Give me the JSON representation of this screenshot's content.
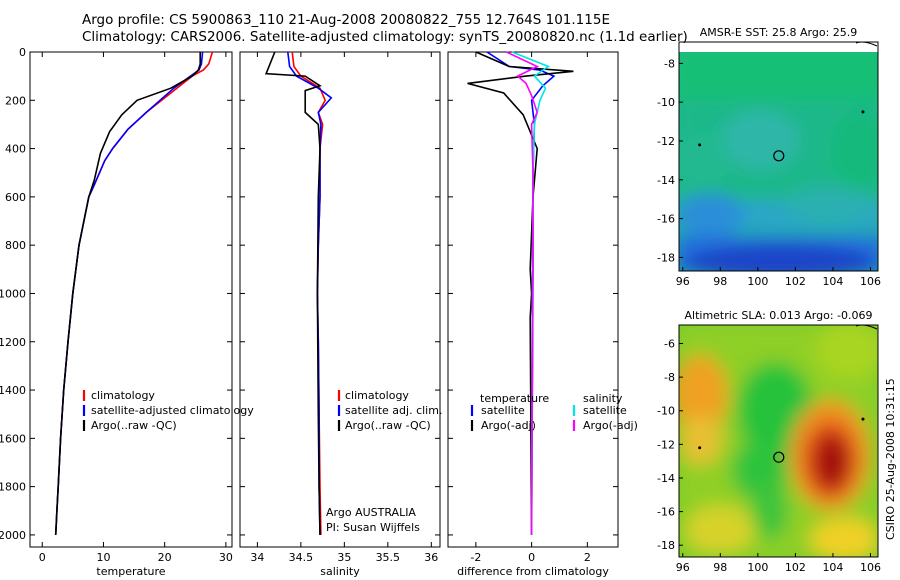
{
  "header": {
    "line1": "Argo profile: CS 5900863_110 21-Aug-2008 20080822_755 12.764S 101.115E",
    "line2": "Climatology: CARS2006. Satellite-adjusted climatology: synTS_20080820.nc (1.1d earlier)"
  },
  "side_label": "CSIRO 25-Aug-2008 10:31:15",
  "colors": {
    "climatology": "#ff0000",
    "satellite": "#0000ff",
    "argo": "#000000",
    "salinity_satellite": "#00e5e5",
    "salinity_argo": "#ff00ff"
  },
  "chart_data": [
    {
      "id": "temperature",
      "type": "line",
      "xlabel": "temperature",
      "ylabel": "",
      "xlim": [
        -2,
        31
      ],
      "ylim": [
        2050,
        0
      ],
      "xticks": [
        0,
        10,
        20,
        30
      ],
      "yticks": [
        0,
        200,
        400,
        600,
        800,
        1000,
        1200,
        1400,
        1600,
        1800,
        2000
      ],
      "legend": [
        "climatology",
        "satellite-adjusted climatology",
        "Argo(..raw -QC)"
      ],
      "series": [
        {
          "name": "climatology",
          "color": "#ff0000",
          "x": [
            27.8,
            27.2,
            26.3,
            24.5,
            22,
            17,
            14,
            11.5,
            10.2,
            8.5,
            7.6,
            6,
            5,
            4.2,
            3.5,
            3,
            2.6,
            2.4,
            2.2
          ],
          "y": [
            0,
            50,
            75,
            100,
            150,
            250,
            320,
            400,
            450,
            550,
            600,
            800,
            1000,
            1200,
            1400,
            1600,
            1800,
            1900,
            2000
          ]
        },
        {
          "name": "satellite-adjusted climatology",
          "color": "#0000ff",
          "x": [
            26.2,
            26,
            25.6,
            24.2,
            21.5,
            17,
            14,
            11.5,
            10.2,
            8.5,
            7.6,
            6,
            5,
            4.2,
            3.5,
            3,
            2.6,
            2.4,
            2.2
          ],
          "y": [
            0,
            50,
            75,
            100,
            150,
            250,
            320,
            400,
            450,
            550,
            600,
            800,
            1000,
            1200,
            1400,
            1600,
            1800,
            1900,
            2000
          ]
        },
        {
          "name": "Argo(..raw -QC)",
          "color": "#000000",
          "x": [
            25.8,
            25.8,
            25.5,
            24.5,
            21,
            15.5,
            13,
            11,
            9.5,
            8.5,
            7.6,
            6,
            5,
            4.2,
            3.5,
            3,
            2.6,
            2.4,
            2.2
          ],
          "y": [
            0,
            50,
            75,
            100,
            150,
            200,
            260,
            330,
            420,
            530,
            600,
            800,
            1000,
            1200,
            1400,
            1600,
            1800,
            1900,
            2000
          ]
        }
      ]
    },
    {
      "id": "salinity",
      "type": "line",
      "xlabel": "salinity",
      "xlim": [
        33.8,
        36.1
      ],
      "ylim": [
        2050,
        0
      ],
      "xticks": [
        34,
        34.5,
        35,
        35.5,
        36
      ],
      "legend": [
        "climatology",
        "satellite adj. clim.",
        "Argo(..raw -QC)"
      ],
      "annotations": [
        "Argo AUSTRALIA",
        "PI: Susan Wijffels"
      ],
      "series": [
        {
          "name": "climatology",
          "color": "#ff0000",
          "x": [
            34.4,
            34.42,
            34.5,
            34.72,
            34.78,
            34.7,
            34.75,
            34.72,
            34.72,
            34.7,
            34.69,
            34.7,
            34.71,
            34.72,
            34.73
          ],
          "y": [
            0,
            60,
            100,
            150,
            200,
            250,
            300,
            400,
            600,
            800,
            1000,
            1200,
            1500,
            1800,
            2000
          ]
        },
        {
          "name": "satellite adj. clim.",
          "color": "#0000ff",
          "x": [
            34.35,
            34.37,
            34.45,
            34.7,
            34.85,
            34.7,
            34.73,
            34.72,
            34.72,
            34.7,
            34.69,
            34.7,
            34.71,
            34.71,
            34.72
          ],
          "y": [
            0,
            60,
            100,
            150,
            190,
            250,
            300,
            400,
            600,
            800,
            1000,
            1200,
            1500,
            1800,
            2000
          ]
        },
        {
          "name": "Argo(..raw -QC)",
          "color": "#000000",
          "x": [
            34.2,
            34.1,
            34.55,
            34.72,
            34.55,
            34.55,
            34.7,
            34.72,
            34.7,
            34.69,
            34.7,
            34.71,
            34.72
          ],
          "y": [
            0,
            90,
            100,
            140,
            160,
            250,
            300,
            400,
            600,
            1000,
            1500,
            1800,
            2000
          ]
        }
      ]
    },
    {
      "id": "difference",
      "type": "line",
      "xlabel": "difference from climatology",
      "xlim": [
        -3,
        3.1
      ],
      "ylim": [
        2050,
        0
      ],
      "xticks": [
        -2,
        0,
        2
      ],
      "legend_temperature_header": "temperature",
      "legend_salinity_header": "salinity",
      "legend": [
        "satellite",
        "Argo(-adj)",
        "satellite",
        "Argo(-adj)"
      ],
      "series": [
        {
          "name": "temperature satellite",
          "color": "#0000ff",
          "x": [
            -1.6,
            -0.8,
            0.3,
            0.8,
            0.4,
            0,
            0.1,
            0.05,
            0.05,
            0
          ],
          "y": [
            0,
            60,
            75,
            100,
            140,
            200,
            300,
            500,
            900,
            2000
          ]
        },
        {
          "name": "temperature Argo(-adj)",
          "color": "#000000",
          "x": [
            -2,
            -0.8,
            1.5,
            -0.2,
            -2.3,
            -1,
            -0.3,
            0.2,
            0.05,
            -0.05,
            0,
            -0.05,
            0
          ],
          "y": [
            0,
            60,
            80,
            100,
            130,
            170,
            260,
            400,
            600,
            900,
            1000,
            1100,
            2000
          ]
        },
        {
          "name": "salinity satellite",
          "color": "#00e5e5",
          "x": [
            -0.7,
            0.6,
            0.1,
            0.5,
            0.3,
            0.1,
            0.05,
            0
          ],
          "y": [
            0,
            60,
            100,
            150,
            200,
            300,
            500,
            2000
          ]
        },
        {
          "name": "salinity Argo(-adj)",
          "color": "#ff00ff",
          "x": [
            -0.9,
            0.2,
            -0.5,
            -0.2,
            0,
            0.2,
            0,
            0.05,
            0
          ],
          "y": [
            0,
            60,
            100,
            130,
            180,
            250,
            300,
            500,
            2000
          ]
        }
      ]
    },
    {
      "id": "sst-map",
      "type": "heatmap",
      "title": "AMSR-E SST: 25.8 Argo: 25.9",
      "xlim": [
        95.8,
        106.4
      ],
      "ylim": [
        -18.7,
        -6.9
      ],
      "xticks": [
        96,
        98,
        100,
        102,
        104,
        106
      ],
      "yticks": [
        -8,
        -10,
        -12,
        -14,
        -16,
        -18
      ],
      "profile_marker": {
        "lon": 101.115,
        "lat": -12.764
      }
    },
    {
      "id": "sla-map",
      "type": "heatmap",
      "title": "Altimetric SLA: 0.013 Argo: -0.069",
      "xlim": [
        95.8,
        106.4
      ],
      "ylim": [
        -18.7,
        -4.9
      ],
      "xticks": [
        96,
        98,
        100,
        102,
        104,
        106
      ],
      "yticks": [
        -6,
        -8,
        -10,
        -12,
        -14,
        -16,
        -18
      ],
      "profile_marker": {
        "lon": 101.115,
        "lat": -12.764
      }
    }
  ]
}
